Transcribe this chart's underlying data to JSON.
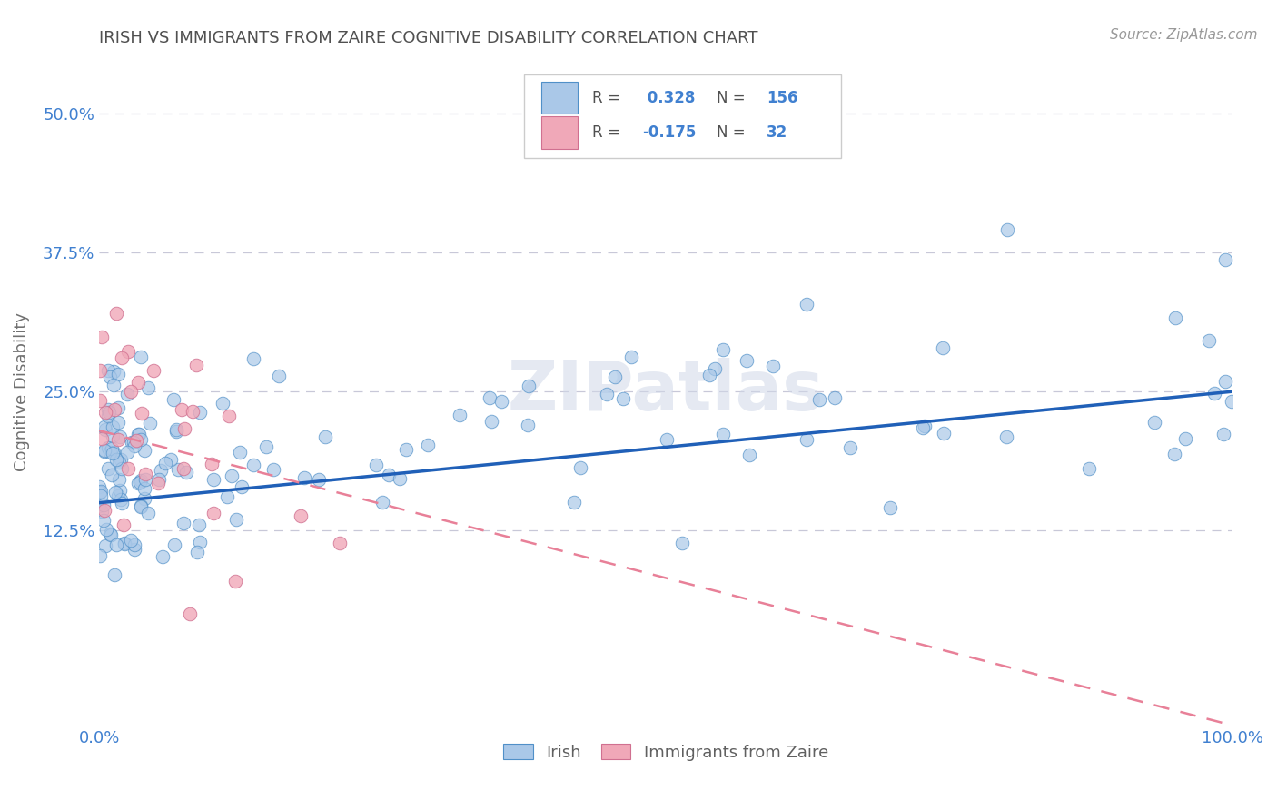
{
  "title": "IRISH VS IMMIGRANTS FROM ZAIRE COGNITIVE DISABILITY CORRELATION CHART",
  "source": "Source: ZipAtlas.com",
  "xlabel": "",
  "ylabel": "Cognitive Disability",
  "xlim": [
    0,
    100
  ],
  "ylim": [
    -5,
    55
  ],
  "yticks": [
    0,
    12.5,
    25.0,
    37.5,
    50.0
  ],
  "xticks": [
    0,
    100
  ],
  "xtick_labels": [
    "0.0%",
    "100.0%"
  ],
  "ytick_labels": [
    "",
    "12.5%",
    "25.0%",
    "37.5%",
    "50.0%"
  ],
  "irish_color": "#aac8e8",
  "zaire_color": "#f0a8b8",
  "irish_edge_color": "#5090c8",
  "zaire_edge_color": "#d07090",
  "irish_line_color": "#2060b8",
  "zaire_line_color": "#e88098",
  "R_irish": 0.328,
  "N_irish": 156,
  "R_zaire": -0.175,
  "N_zaire": 32,
  "legend_R_color": "#4080d0",
  "background_color": "#ffffff",
  "grid_color": "#c8c8d8",
  "title_color": "#505050",
  "axis_label_color": "#707070",
  "tick_label_color": "#4080d0",
  "watermark_text": "ZIPatlas",
  "watermark_color": "#d0d8e8"
}
